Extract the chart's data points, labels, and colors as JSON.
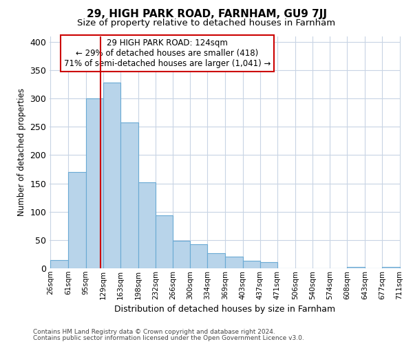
{
  "title_line1": "29, HIGH PARK ROAD, FARNHAM, GU9 7JJ",
  "title_line2": "Size of property relative to detached houses in Farnham",
  "xlabel": "Distribution of detached houses by size in Farnham",
  "ylabel": "Number of detached properties",
  "bar_edges": [
    26,
    61,
    95,
    129,
    163,
    198,
    232,
    266,
    300,
    334,
    369,
    403,
    437,
    471,
    506,
    540,
    574,
    608,
    643,
    677,
    711
  ],
  "bar_heights": [
    15,
    170,
    300,
    328,
    258,
    152,
    94,
    48,
    42,
    27,
    21,
    13,
    11,
    0,
    0,
    0,
    0,
    2,
    0,
    2
  ],
  "bar_color": "#b8d4ea",
  "bar_edge_color": "#6aaad4",
  "vline_x": 124,
  "vline_color": "#cc0000",
  "annotation_line1": "29 HIGH PARK ROAD: 124sqm",
  "annotation_line2": "← 29% of detached houses are smaller (418)",
  "annotation_line3": "71% of semi-detached houses are larger (1,041) →",
  "annotation_box_color": "#ffffff",
  "annotation_box_edge": "#cc0000",
  "ylim": [
    0,
    410
  ],
  "yticks": [
    0,
    50,
    100,
    150,
    200,
    250,
    300,
    350,
    400
  ],
  "footer_line1": "Contains HM Land Registry data © Crown copyright and database right 2024.",
  "footer_line2": "Contains public sector information licensed under the Open Government Licence v3.0.",
  "bg_color": "#ffffff",
  "grid_color": "#c8d4e4",
  "title1_fontsize": 11,
  "title2_fontsize": 9.5,
  "ylabel_fontsize": 8.5,
  "xlabel_fontsize": 9,
  "ytick_fontsize": 9,
  "xtick_fontsize": 7.5,
  "annotation_fontsize": 8.5,
  "footer_fontsize": 6.5
}
